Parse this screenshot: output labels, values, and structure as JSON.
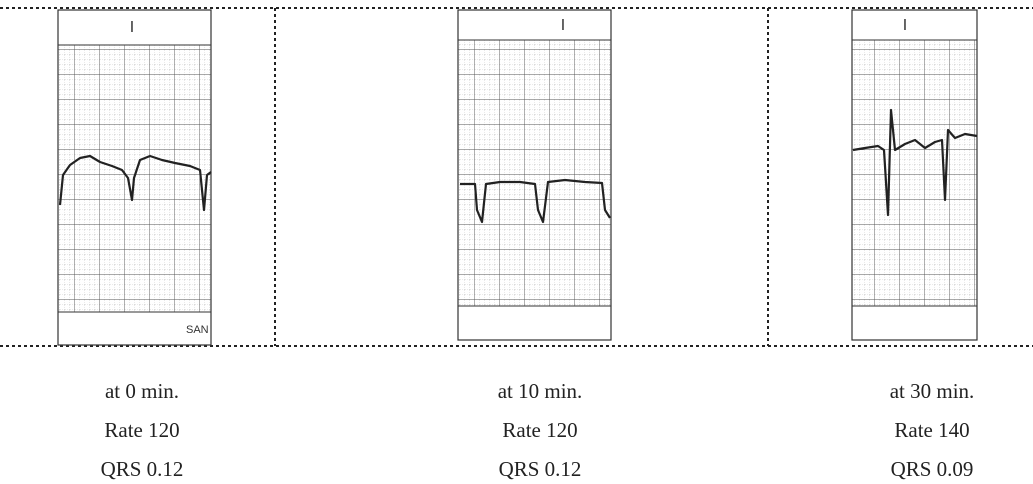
{
  "panels": [
    {
      "lead": "I",
      "marker": "SAN",
      "caption": [
        "at 0 min.",
        "Rate 120",
        "QRS 0.12"
      ]
    },
    {
      "lead": "I",
      "caption": [
        "at 10 min.",
        "Rate 120",
        "QRS 0.12"
      ]
    },
    {
      "lead": "I",
      "caption": [
        "at 30 min.",
        "Rate 140",
        "QRS 0.09"
      ]
    }
  ]
}
